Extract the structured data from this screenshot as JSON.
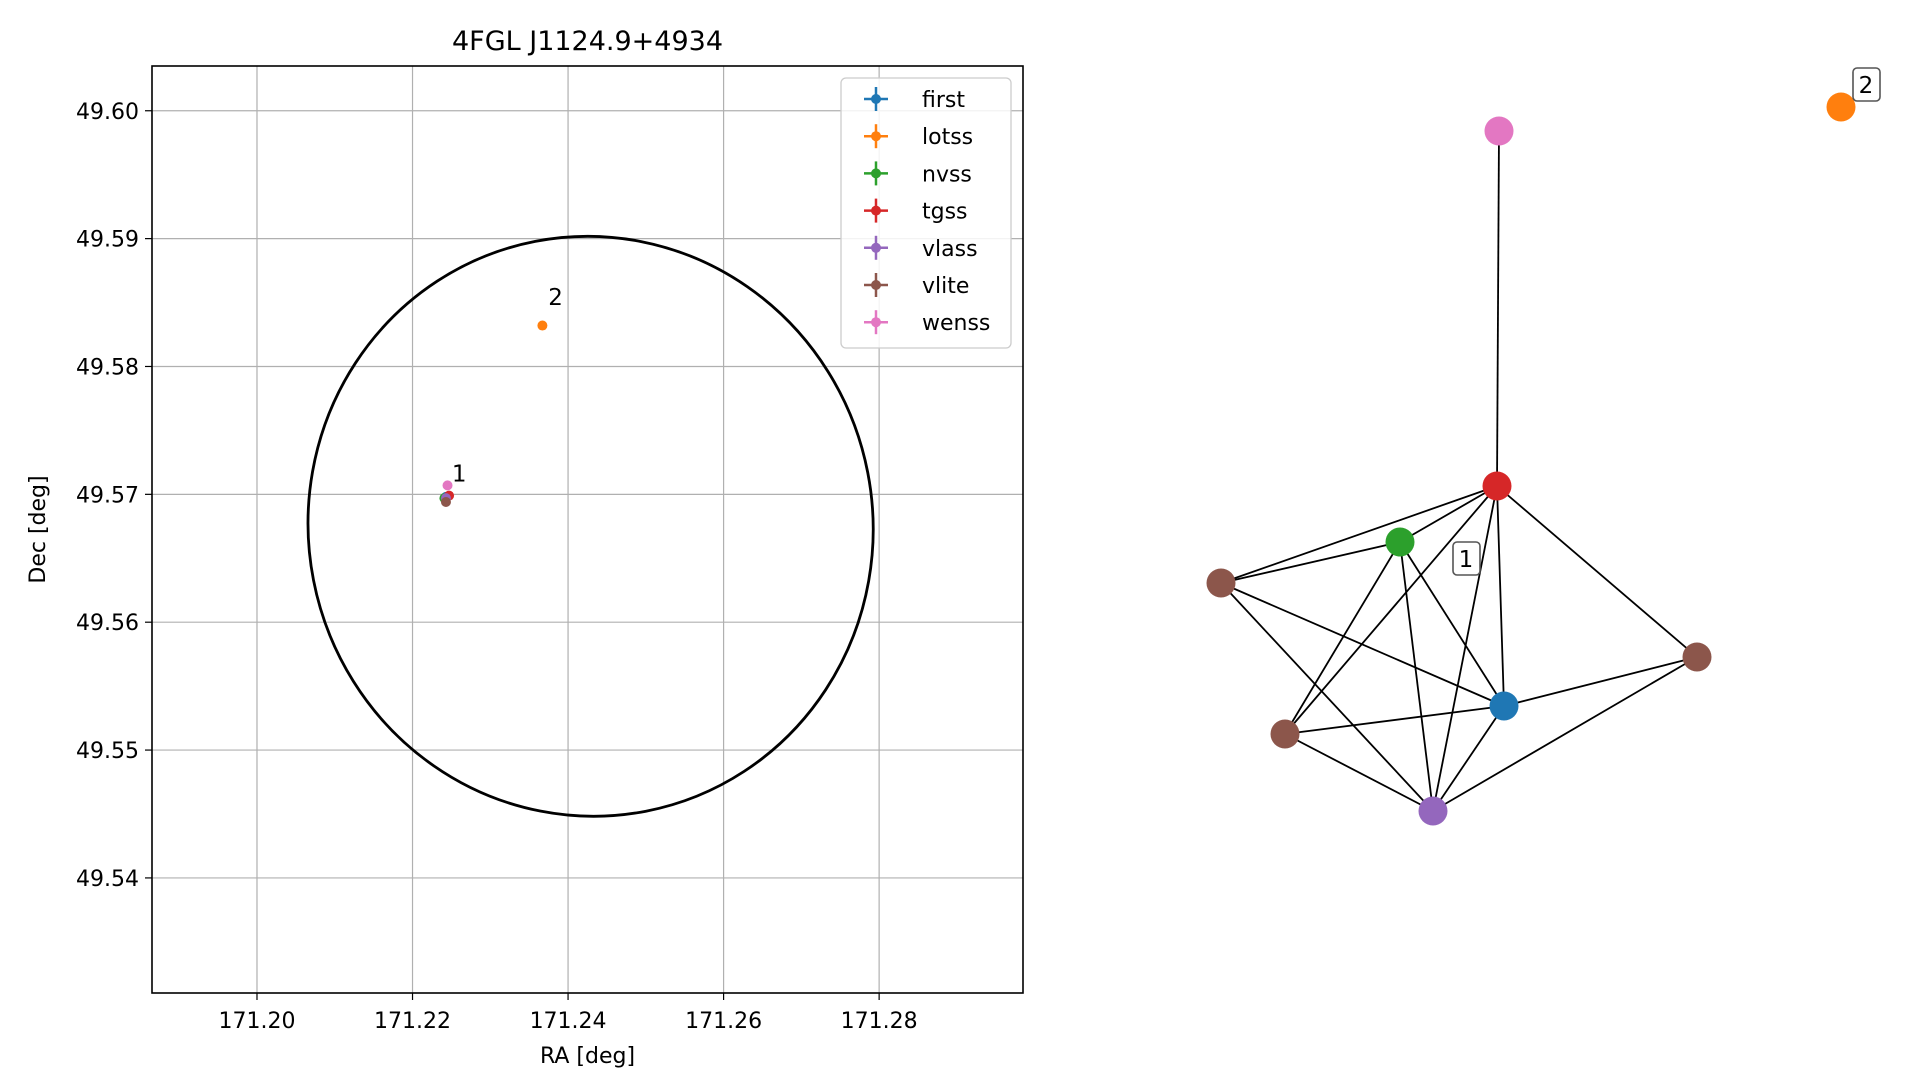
{
  "chart_data": [
    {
      "type": "scatter",
      "title": "4FGL J1124.9+4934",
      "xlabel": "RA [deg]",
      "ylabel": "Dec [deg]",
      "xlim": [
        171.1865,
        171.2985
      ],
      "ylim": [
        49.531,
        49.6035
      ],
      "x_ticks": [
        171.2,
        171.22,
        171.24,
        171.26,
        171.28
      ],
      "x_tick_labels": [
        "171.20",
        "171.22",
        "171.24",
        "171.26",
        "171.28"
      ],
      "y_ticks": [
        49.54,
        49.55,
        49.56,
        49.57,
        49.58,
        49.59,
        49.6
      ],
      "y_tick_labels": [
        "49.54",
        "49.55",
        "49.56",
        "49.57",
        "49.58",
        "49.59",
        "49.60"
      ],
      "grid": true,
      "legend_position": "top-right",
      "series": [
        {
          "name": "first",
          "color": "#1f77b4",
          "points": [
            [
              171.2243,
              49.5698
            ]
          ]
        },
        {
          "name": "lotss",
          "color": "#ff7f0e",
          "points": [
            [
              171.2367,
              49.5832
            ]
          ]
        },
        {
          "name": "nvss",
          "color": "#2ca02c",
          "points": [
            [
              171.2241,
              49.5697
            ]
          ]
        },
        {
          "name": "tgss",
          "color": "#d62728",
          "points": [
            [
              171.2247,
              49.5699
            ]
          ]
        },
        {
          "name": "vlass",
          "color": "#9467bd",
          "points": [
            [
              171.2243,
              49.5697
            ]
          ]
        },
        {
          "name": "vlite",
          "color": "#8c564b",
          "points": [
            [
              171.2243,
              49.5694
            ]
          ]
        },
        {
          "name": "wenss",
          "color": "#e377c2",
          "points": [
            [
              171.2245,
              49.5707
            ]
          ]
        }
      ],
      "annotations": [
        {
          "text": "1",
          "x": 171.2248,
          "y": 49.571
        },
        {
          "text": "2",
          "x": 171.2372,
          "y": 49.5848
        }
      ],
      "ellipse": {
        "center": [
          171.2429,
          49.5675
        ],
        "semi_major_ra": 0.0363,
        "semi_minor_dec": 0.0227,
        "angle_deg": -11,
        "color": "#000000"
      }
    },
    {
      "type": "network",
      "nodes": [
        {
          "id": "wenss",
          "color": "#e377c2"
        },
        {
          "id": "tgss",
          "color": "#d62728"
        },
        {
          "id": "nvss",
          "color": "#2ca02c"
        },
        {
          "id": "vlite_a",
          "color": "#8c564b"
        },
        {
          "id": "vlite_b",
          "color": "#8c564b"
        },
        {
          "id": "vlite_c",
          "color": "#8c564b"
        },
        {
          "id": "first",
          "color": "#1f77b4"
        },
        {
          "id": "vlass",
          "color": "#9467bd"
        },
        {
          "id": "lotss",
          "color": "#ff7f0e"
        }
      ],
      "edges": [
        [
          "wenss",
          "tgss"
        ],
        [
          "tgss",
          "nvss"
        ],
        [
          "tgss",
          "vlite_a"
        ],
        [
          "tgss",
          "vlite_b"
        ],
        [
          "tgss",
          "vlite_c"
        ],
        [
          "tgss",
          "first"
        ],
        [
          "tgss",
          "vlass"
        ],
        [
          "nvss",
          "vlite_a"
        ],
        [
          "nvss",
          "vlite_c"
        ],
        [
          "nvss",
          "first"
        ],
        [
          "nvss",
          "vlass"
        ],
        [
          "vlite_a",
          "first"
        ],
        [
          "vlite_a",
          "vlass"
        ],
        [
          "vlite_b",
          "first"
        ],
        [
          "vlite_b",
          "vlass"
        ],
        [
          "vlite_c",
          "first"
        ],
        [
          "vlite_c",
          "vlass"
        ],
        [
          "first",
          "vlass"
        ]
      ],
      "group_labels": [
        {
          "text": "1"
        },
        {
          "text": "2"
        }
      ]
    }
  ]
}
